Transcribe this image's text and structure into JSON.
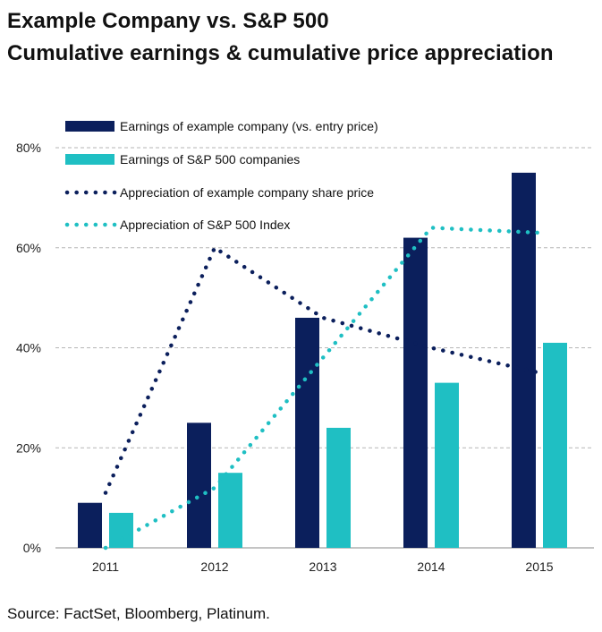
{
  "title": {
    "line1": "Example Company vs. S&P 500",
    "line2": "Cumulative earnings & cumulative price appreciation"
  },
  "source": "Source: FactSet, Bloomberg, Platinum.",
  "chart_data": {
    "type": "bar",
    "categories": [
      "2011",
      "2012",
      "2013",
      "2014",
      "2015"
    ],
    "ylim": [
      0,
      80
    ],
    "yticks": [
      0,
      20,
      40,
      60,
      80
    ],
    "ytick_labels": [
      "0%",
      "20%",
      "40%",
      "60%",
      "80%"
    ],
    "grid": "horizontal dashed",
    "legend_position": "top-left",
    "series": [
      {
        "name": "Earnings of example company (vs. entry price)",
        "kind": "bar",
        "color": "#0b1f5c",
        "values": [
          9,
          25,
          46,
          62,
          75
        ]
      },
      {
        "name": "Earnings of S&P 500 companies",
        "kind": "bar",
        "color": "#1fbfc3",
        "values": [
          7,
          15,
          24,
          33,
          41
        ]
      },
      {
        "name": "Appreciation of example company share price",
        "kind": "dotted-line",
        "color": "#0b1f5c",
        "values": [
          11,
          60,
          46,
          40,
          35
        ]
      },
      {
        "name": "Appreciation of S&P 500 Index",
        "kind": "dotted-line",
        "color": "#1fbfc3",
        "values": [
          0,
          12,
          38,
          64,
          63
        ]
      }
    ]
  }
}
